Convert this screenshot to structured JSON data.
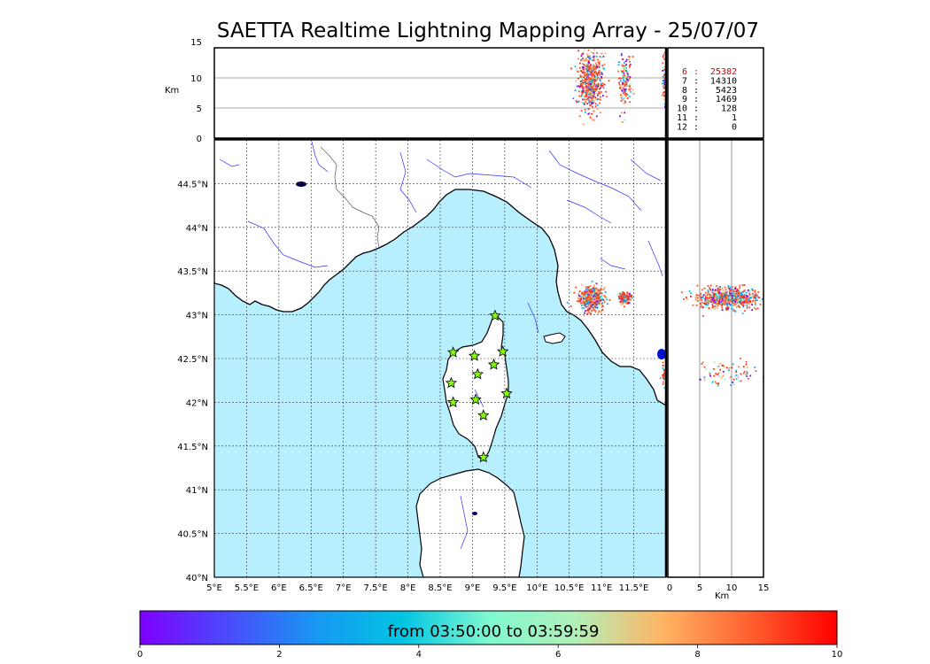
{
  "title": "SAETTA Realtime Lightning Mapping Array - 25/07/07",
  "altitude_axis": {
    "label": "Km",
    "ticks": [
      "15",
      "10",
      "5",
      "0"
    ],
    "ylim": [
      0,
      15
    ]
  },
  "side_axis": {
    "label": "Km",
    "ticks": [
      "0",
      "5",
      "10",
      "15"
    ],
    "xlim": [
      0,
      15
    ]
  },
  "map": {
    "lon_range": [
      5,
      12
    ],
    "lat_range": [
      40,
      45
    ],
    "lon_ticks": [
      "5°E",
      "5.5°E",
      "6°E",
      "6.5°E",
      "7°E",
      "7.5°E",
      "8°E",
      "8.5°E",
      "9°E",
      "9.5°E",
      "10°E",
      "10.5°E",
      "11°E",
      "11.5°E"
    ],
    "lat_ticks": [
      "44.5°N",
      "44°N",
      "43.5°N",
      "43°N",
      "42.5°N",
      "42°N",
      "41.5°N",
      "41°N",
      "40.5°N",
      "40°N"
    ],
    "sea_color": "#b7efff",
    "land_color": "#ffffff",
    "river_color": "#3232ff",
    "stations": [
      [
        8.7,
        42.57
      ],
      [
        9.03,
        42.53
      ],
      [
        9.35,
        42.99
      ],
      [
        9.47,
        42.58
      ],
      [
        9.33,
        42.43
      ],
      [
        9.08,
        42.32
      ],
      [
        8.67,
        42.22
      ],
      [
        8.7,
        42.0
      ],
      [
        9.05,
        42.03
      ],
      [
        9.53,
        42.1
      ],
      [
        9.17,
        41.85
      ],
      [
        9.17,
        41.37
      ]
    ],
    "station_color": "#80ff00",
    "clusters": [
      {
        "lon": 10.82,
        "lat": 43.2,
        "spread_lon": 0.18,
        "spread_lat": 0.12,
        "n": 600
      },
      {
        "lon": 11.35,
        "lat": 43.2,
        "spread_lon": 0.1,
        "spread_lat": 0.06,
        "n": 150
      },
      {
        "lon": 11.98,
        "lat": 42.33,
        "spread_lon": 0.05,
        "spread_lat": 0.12,
        "n": 80
      }
    ]
  },
  "station_counts": [
    {
      "stations": "6",
      "count": "25382",
      "color": "#d40000"
    },
    {
      "stations": "7",
      "count": "14310",
      "color": "#000000"
    },
    {
      "stations": "8",
      "count": "5423",
      "color": "#000000"
    },
    {
      "stations": "9",
      "count": "1469",
      "color": "#000000"
    },
    {
      "stations": "10",
      "count": "128",
      "color": "#000000"
    },
    {
      "stations": "11",
      "count": "1",
      "color": "#000000"
    },
    {
      "stations": "12",
      "count": "0",
      "color": "#000000"
    }
  ],
  "colorbar": {
    "label": "from 03:50:00 to 03:59:59",
    "ticks": [
      "0",
      "2",
      "4",
      "6",
      "8",
      "10"
    ],
    "range": [
      0,
      10
    ]
  }
}
